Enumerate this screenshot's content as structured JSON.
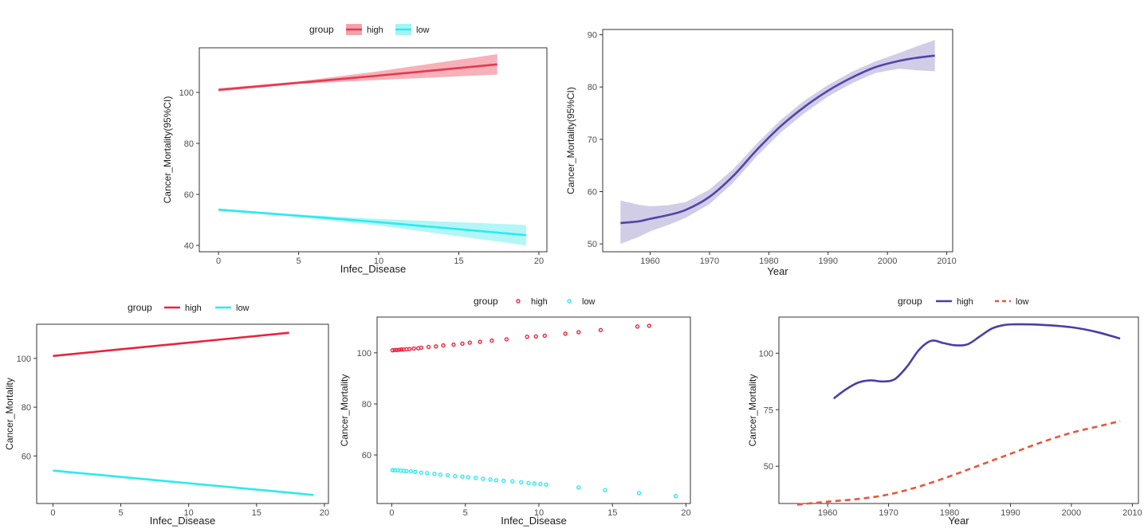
{
  "chart_data": [
    {
      "id": "p1",
      "type": "line",
      "xlabel": "Infec_Disease",
      "ylabel": "Cancer_Mortality(95%CI)",
      "xlim": [
        -1.2,
        20.5
      ],
      "ylim": [
        37.5,
        117.5
      ],
      "xticks": [
        0,
        5,
        10,
        15,
        20
      ],
      "yticks": [
        40,
        60,
        80,
        100
      ],
      "legend": {
        "title": "group",
        "position": "top",
        "style": "band"
      },
      "series": [
        {
          "name": "high",
          "color": "#e8384f",
          "fill": "#f4a3ad",
          "x": [
            0,
            5,
            10,
            17.4
          ],
          "y": [
            101,
            103.8,
            106.6,
            111
          ],
          "lo": [
            100.4,
            103.3,
            104.9,
            107
          ],
          "hi": [
            101.6,
            104.3,
            108.3,
            115
          ]
        },
        {
          "name": "low",
          "color": "#2de9f0",
          "fill": "#a4f4f6",
          "x": [
            0,
            5,
            10,
            19.2
          ],
          "y": [
            54,
            51.6,
            49.1,
            44
          ],
          "lo": [
            53.5,
            51.1,
            47.8,
            40
          ],
          "hi": [
            54.5,
            52.1,
            50.4,
            48
          ]
        }
      ]
    },
    {
      "id": "p2",
      "type": "line",
      "xlabel": "Year",
      "ylabel": "Cancer_Mortality(95%CI)",
      "xlim": [
        1952,
        2011
      ],
      "ylim": [
        48.5,
        91
      ],
      "xticks": [
        1960,
        1970,
        1980,
        1990,
        2000,
        2010
      ],
      "yticks": [
        50,
        60,
        70,
        80,
        90
      ],
      "series": [
        {
          "name": "",
          "color": "#5046a8",
          "fill": "#c9c4e3",
          "x": [
            1955,
            1958,
            1960,
            1963,
            1966,
            1970,
            1974,
            1978,
            1982,
            1986,
            1990,
            1994,
            1998,
            2002,
            2005,
            2008
          ],
          "y": [
            54,
            54.3,
            54.8,
            55.5,
            56.5,
            59,
            63,
            68,
            72.5,
            76.2,
            79.3,
            81.8,
            83.8,
            85,
            85.6,
            86
          ],
          "lo": [
            50,
            51.3,
            52.4,
            53.6,
            55,
            57.6,
            61.7,
            66.8,
            71.3,
            75,
            78.2,
            80.7,
            82.7,
            83.5,
            83.2,
            83
          ],
          "hi": [
            58.3,
            57.5,
            57.2,
            57.4,
            58,
            60.4,
            64.3,
            69.2,
            73.7,
            77.4,
            80.4,
            82.9,
            84.9,
            86.5,
            87.8,
            89
          ]
        }
      ]
    },
    {
      "id": "p3",
      "type": "line",
      "xlabel": "Infec_Disease",
      "ylabel": "Cancer_Mortality",
      "xlim": [
        -1.2,
        20.3
      ],
      "ylim": [
        40.5,
        114
      ],
      "xticks": [
        0,
        5,
        10,
        15,
        20
      ],
      "yticks": [
        60,
        80,
        100
      ],
      "legend": {
        "title": "group",
        "position": "top",
        "style": "line"
      },
      "series": [
        {
          "name": "high",
          "color": "#e8243a",
          "x": [
            0,
            17.4
          ],
          "y": [
            101,
            110.5
          ]
        },
        {
          "name": "low",
          "color": "#2de9f0",
          "x": [
            0,
            19.2
          ],
          "y": [
            54,
            44
          ]
        }
      ]
    },
    {
      "id": "p4",
      "type": "scatter",
      "xlabel": "Infec_Disease",
      "ylabel": "Cancer_Mortality",
      "xlim": [
        -1,
        20.3
      ],
      "ylim": [
        41,
        114
      ],
      "xticks": [
        0,
        5,
        10,
        15,
        20
      ],
      "yticks": [
        60,
        80,
        100
      ],
      "legend": {
        "title": "group",
        "position": "top",
        "style": "point"
      },
      "series": [
        {
          "name": "high",
          "color": "#e8243a",
          "x": [
            0.05,
            0.2,
            0.35,
            0.5,
            0.65,
            0.8,
            1.0,
            1.2,
            1.5,
            1.8,
            2.0,
            2.5,
            3.0,
            3.5,
            4.2,
            4.8,
            5.3,
            6.0,
            6.8,
            7.8,
            9.2,
            9.8,
            10.4,
            11.8,
            12.7,
            14.2,
            16.7,
            17.5
          ],
          "y": [
            101,
            101.1,
            101.1,
            101.2,
            101.3,
            101.3,
            101.4,
            101.5,
            101.7,
            101.8,
            102,
            102.3,
            102.5,
            102.9,
            103.2,
            103.6,
            104,
            104.3,
            104.8,
            105.3,
            106.3,
            106.4,
            106.7,
            107.5,
            108.1,
            108.9,
            110.3,
            110.6
          ]
        },
        {
          "name": "low",
          "color": "#2de9f0",
          "x": [
            0.05,
            0.2,
            0.4,
            0.6,
            0.8,
            1.0,
            1.3,
            1.6,
            2.0,
            2.4,
            2.9,
            3.3,
            3.8,
            4.3,
            4.8,
            5.2,
            5.7,
            6.2,
            6.7,
            7.1,
            7.6,
            8.2,
            8.8,
            9.3,
            9.7,
            10.1,
            10.5,
            12.7,
            14.5,
            16.8,
            19.3
          ],
          "y": [
            54.1,
            54,
            54,
            53.9,
            53.8,
            53.7,
            53.6,
            53.4,
            53.1,
            52.9,
            52.6,
            52.3,
            52.1,
            51.7,
            51.5,
            51.3,
            51,
            50.7,
            50.4,
            50.1,
            49.9,
            49.7,
            49.3,
            49,
            48.8,
            48.6,
            48.4,
            47.3,
            46.2,
            45.1,
            43.9
          ]
        }
      ]
    },
    {
      "id": "p5",
      "type": "line",
      "xlabel": "Year",
      "ylabel": "Cancer_Mortality",
      "xlim": [
        1952,
        2011
      ],
      "ylim": [
        33.5,
        116
      ],
      "xticks": [
        1960,
        1970,
        1980,
        1990,
        2000,
        2010
      ],
      "yticks": [
        50,
        75,
        100
      ],
      "legend": {
        "title": "group",
        "position": "top",
        "style": "line"
      },
      "series": [
        {
          "name": "high",
          "color": "#4a3fa8",
          "dash": "",
          "x": [
            1961,
            1963,
            1965,
            1967,
            1969,
            1971,
            1973,
            1975,
            1977,
            1979,
            1981,
            1983,
            1985,
            1987,
            1989,
            1991,
            1995,
            2000,
            2004,
            2008
          ],
          "y": [
            80,
            84,
            87,
            88,
            87.5,
            88.5,
            94,
            101.5,
            105.5,
            104.5,
            103.5,
            104,
            107.5,
            111,
            112.5,
            112.8,
            112.6,
            111.5,
            109.5,
            106.5
          ]
        },
        {
          "name": "low",
          "color": "#e8553f",
          "dash": "7,5",
          "x": [
            1955,
            1960,
            1965,
            1970,
            1975,
            1980,
            1985,
            1990,
            1995,
            2000,
            2005,
            2008
          ],
          "y": [
            33,
            34.3,
            35.5,
            37.5,
            41,
            45.5,
            50.5,
            55.5,
            60.5,
            64.8,
            68,
            70
          ]
        }
      ]
    }
  ]
}
